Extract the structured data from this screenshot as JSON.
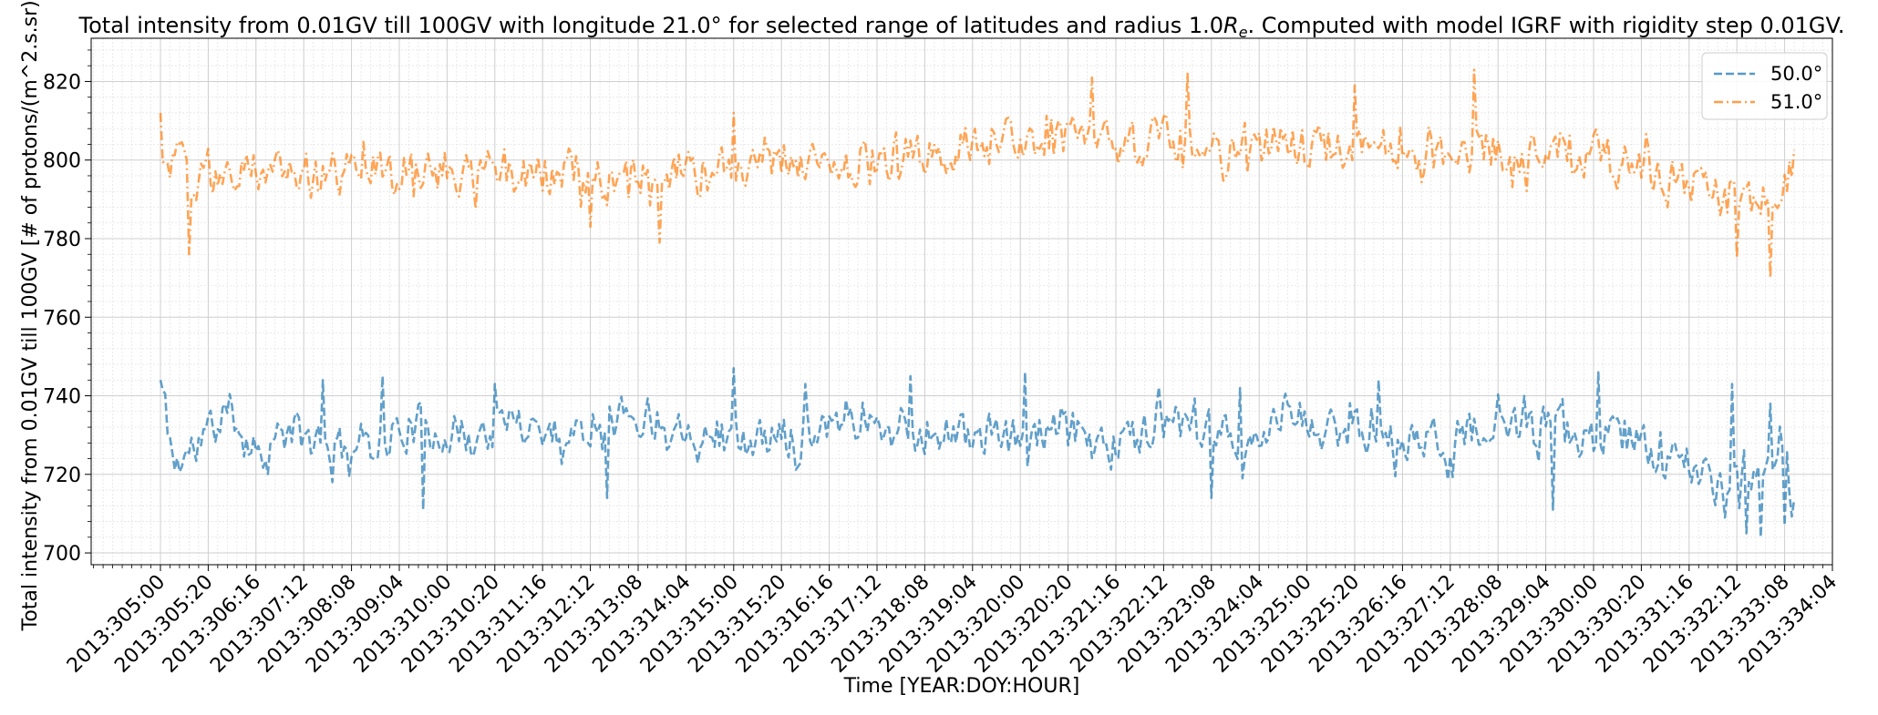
{
  "chart_data": {
    "type": "line",
    "title_main": "Total intensity from 0.01GV till 100GV with longitude 21.0° for selected range of latitudes and radius 1.0",
    "title_r": "R",
    "title_sub": "e",
    "title_rest": ". Computed with model IGRF with rigidity step 0.01GV.",
    "xlabel": "Time [YEAR:DOY:HOUR]",
    "ylabel": "Total intensity from 0.01GV till 100GV [# of protons/(m^2.s.sr)]",
    "ylim": [
      697,
      831
    ],
    "yticks": [
      700,
      720,
      740,
      760,
      780,
      800,
      820
    ],
    "xlim_hours": [
      -29,
      700
    ],
    "data_hours": [
      0,
      684
    ],
    "x_tick_labels": [
      "2013:305:00",
      "2013:305:20",
      "2013:306:16",
      "2013:307:12",
      "2013:308:08",
      "2013:309:04",
      "2013:310:00",
      "2013:310:20",
      "2013:311:16",
      "2013:312:12",
      "2013:313:08",
      "2013:314:04",
      "2013:315:00",
      "2013:315:20",
      "2013:316:16",
      "2013:317:12",
      "2013:318:08",
      "2013:319:04",
      "2013:320:00",
      "2013:320:20",
      "2013:321:16",
      "2013:322:12",
      "2013:323:08",
      "2013:324:04",
      "2013:325:00",
      "2013:325:20",
      "2013:326:16",
      "2013:327:12",
      "2013:328:08",
      "2013:329:04",
      "2013:330:00",
      "2013:330:20",
      "2013:331:16",
      "2013:332:12",
      "2013:333:08",
      "2013:334:04"
    ],
    "x_tick_step_hours": 20,
    "grid": true,
    "legend_position": "top-right",
    "series": [
      {
        "name": "50.0°",
        "color": "#1f77b4",
        "dash": "dashed",
        "anchors": [
          [
            0,
            744
          ],
          [
            6,
            722
          ],
          [
            20,
            731
          ],
          [
            30,
            736
          ],
          [
            40,
            726
          ],
          [
            55,
            731
          ],
          [
            70,
            726
          ],
          [
            90,
            729
          ],
          [
            110,
            733
          ],
          [
            130,
            729
          ],
          [
            150,
            734
          ],
          [
            170,
            730
          ],
          [
            190,
            736
          ],
          [
            210,
            734
          ],
          [
            230,
            731
          ],
          [
            250,
            728
          ],
          [
            270,
            731
          ],
          [
            285,
            736
          ],
          [
            300,
            732
          ],
          [
            320,
            731
          ],
          [
            340,
            730
          ],
          [
            360,
            729
          ],
          [
            380,
            731
          ],
          [
            400,
            728
          ],
          [
            420,
            733
          ],
          [
            440,
            729
          ],
          [
            460,
            726
          ],
          [
            470,
            737
          ],
          [
            485,
            730
          ],
          [
            500,
            733
          ],
          [
            520,
            728
          ],
          [
            540,
            729
          ],
          [
            560,
            731
          ],
          [
            580,
            732
          ],
          [
            600,
            729
          ],
          [
            620,
            729
          ],
          [
            630,
            724
          ],
          [
            640,
            722
          ],
          [
            650,
            718
          ],
          [
            660,
            718
          ],
          [
            670,
            719
          ],
          [
            678,
            730
          ],
          [
            684,
            711
          ]
        ],
        "amplitude": 6.5,
        "min": 704,
        "max": 749,
        "seed": 11,
        "peaks": [
          [
            0,
            744
          ],
          [
            68,
            744
          ],
          [
            93,
            745
          ],
          [
            140,
            743
          ],
          [
            240,
            747
          ],
          [
            270,
            743
          ],
          [
            314,
            745
          ],
          [
            362,
            746
          ],
          [
            452,
            742
          ],
          [
            510,
            744
          ],
          [
            602,
            746
          ],
          [
            658,
            743
          ],
          [
            674,
            738
          ]
        ],
        "dips": [
          [
            110,
            711
          ],
          [
            187,
            714
          ],
          [
            440,
            714
          ],
          [
            583,
            711
          ],
          [
            655,
            709
          ],
          [
            664,
            705
          ],
          [
            670,
            704
          ],
          [
            680,
            707
          ]
        ]
      },
      {
        "name": "51.0°",
        "color": "#ff7f0e",
        "dash": "dashdot",
        "anchors": [
          [
            0,
            803
          ],
          [
            15,
            795
          ],
          [
            30,
            797
          ],
          [
            50,
            797
          ],
          [
            70,
            796
          ],
          [
            90,
            797
          ],
          [
            110,
            796
          ],
          [
            130,
            798
          ],
          [
            150,
            797
          ],
          [
            170,
            797
          ],
          [
            190,
            794
          ],
          [
            210,
            797
          ],
          [
            230,
            797
          ],
          [
            250,
            800
          ],
          [
            270,
            801
          ],
          [
            290,
            800
          ],
          [
            310,
            800
          ],
          [
            330,
            802
          ],
          [
            350,
            805
          ],
          [
            370,
            803
          ],
          [
            390,
            805
          ],
          [
            410,
            803
          ],
          [
            430,
            806
          ],
          [
            450,
            803
          ],
          [
            470,
            805
          ],
          [
            490,
            803
          ],
          [
            510,
            802
          ],
          [
            530,
            799
          ],
          [
            550,
            803
          ],
          [
            570,
            802
          ],
          [
            590,
            802
          ],
          [
            610,
            800
          ],
          [
            625,
            797
          ],
          [
            640,
            793
          ],
          [
            655,
            791
          ],
          [
            670,
            790
          ],
          [
            684,
            798
          ]
        ],
        "amplitude": 7,
        "min": 770,
        "max": 823,
        "seed": 29,
        "peaks": [
          [
            0,
            812
          ],
          [
            390,
            821
          ],
          [
            430,
            822
          ],
          [
            550,
            823
          ],
          [
            500,
            819
          ],
          [
            240,
            812
          ]
        ],
        "dips": [
          [
            12,
            776
          ],
          [
            209,
            779
          ],
          [
            180,
            783
          ],
          [
            660,
            775
          ],
          [
            674,
            770
          ]
        ]
      }
    ]
  }
}
